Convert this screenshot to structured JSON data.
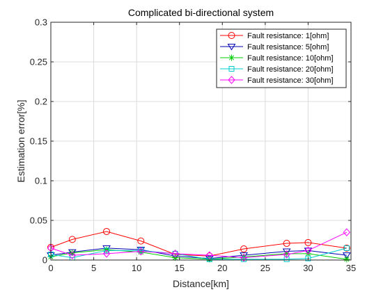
{
  "chart_data": {
    "type": "line",
    "title": "Complicated bi-directional system",
    "xlabel": "Distance[km]",
    "ylabel": "Estimation error[%]",
    "xlim": [
      0,
      35
    ],
    "ylim": [
      0,
      0.3
    ],
    "xticks": [
      0,
      5,
      10,
      15,
      20,
      25,
      30,
      35
    ],
    "yticks": [
      0,
      0.05,
      0.1,
      0.15,
      0.2,
      0.25,
      0.3
    ],
    "xtick_labels": [
      "0",
      "5",
      "10",
      "15",
      "20",
      "25",
      "30",
      "35"
    ],
    "ytick_labels": [
      "0",
      "0.05",
      "0.1",
      "0.15",
      "0.2",
      "0.25",
      "0.3"
    ],
    "grid": true,
    "legend_position": "top-right",
    "x": [
      0,
      2.5,
      6.5,
      10.5,
      14.5,
      18.5,
      22.5,
      27.5,
      30,
      34.5
    ],
    "series": [
      {
        "name": "Fault resistance: 1[ohm]",
        "color": "#ff0000",
        "marker": "circle",
        "values": [
          0.016,
          0.026,
          0.036,
          0.024,
          0.007,
          0.005,
          0.014,
          0.021,
          0.022,
          0.015
        ]
      },
      {
        "name": "Fault resistance: 5[ohm]",
        "color": "#0000b3",
        "marker": "triangle-down",
        "values": [
          0.006,
          0.01,
          0.015,
          0.013,
          0.005,
          0.002,
          0.006,
          0.011,
          0.012,
          0.006
        ]
      },
      {
        "name": "Fault resistance: 10[ohm]",
        "color": "#00cc00",
        "marker": "asterisk",
        "values": [
          0.004,
          0.009,
          0.013,
          0.01,
          0.003,
          0.001,
          0.004,
          0.008,
          0.008,
          0.001
        ]
      },
      {
        "name": "Fault resistance: 20[ohm]",
        "color": "#00cccc",
        "marker": "square",
        "values": [
          0.007,
          0.003,
          0.012,
          0.012,
          0.008,
          0.001,
          0.001,
          0.001,
          0.002,
          0.015
        ]
      },
      {
        "name": "Fault resistance: 30[ohm]",
        "color": "#ff00ff",
        "marker": "diamond",
        "values": [
          0.015,
          0.006,
          0.008,
          0.011,
          0.008,
          0.006,
          0.003,
          0.007,
          0.012,
          0.035
        ]
      }
    ]
  }
}
